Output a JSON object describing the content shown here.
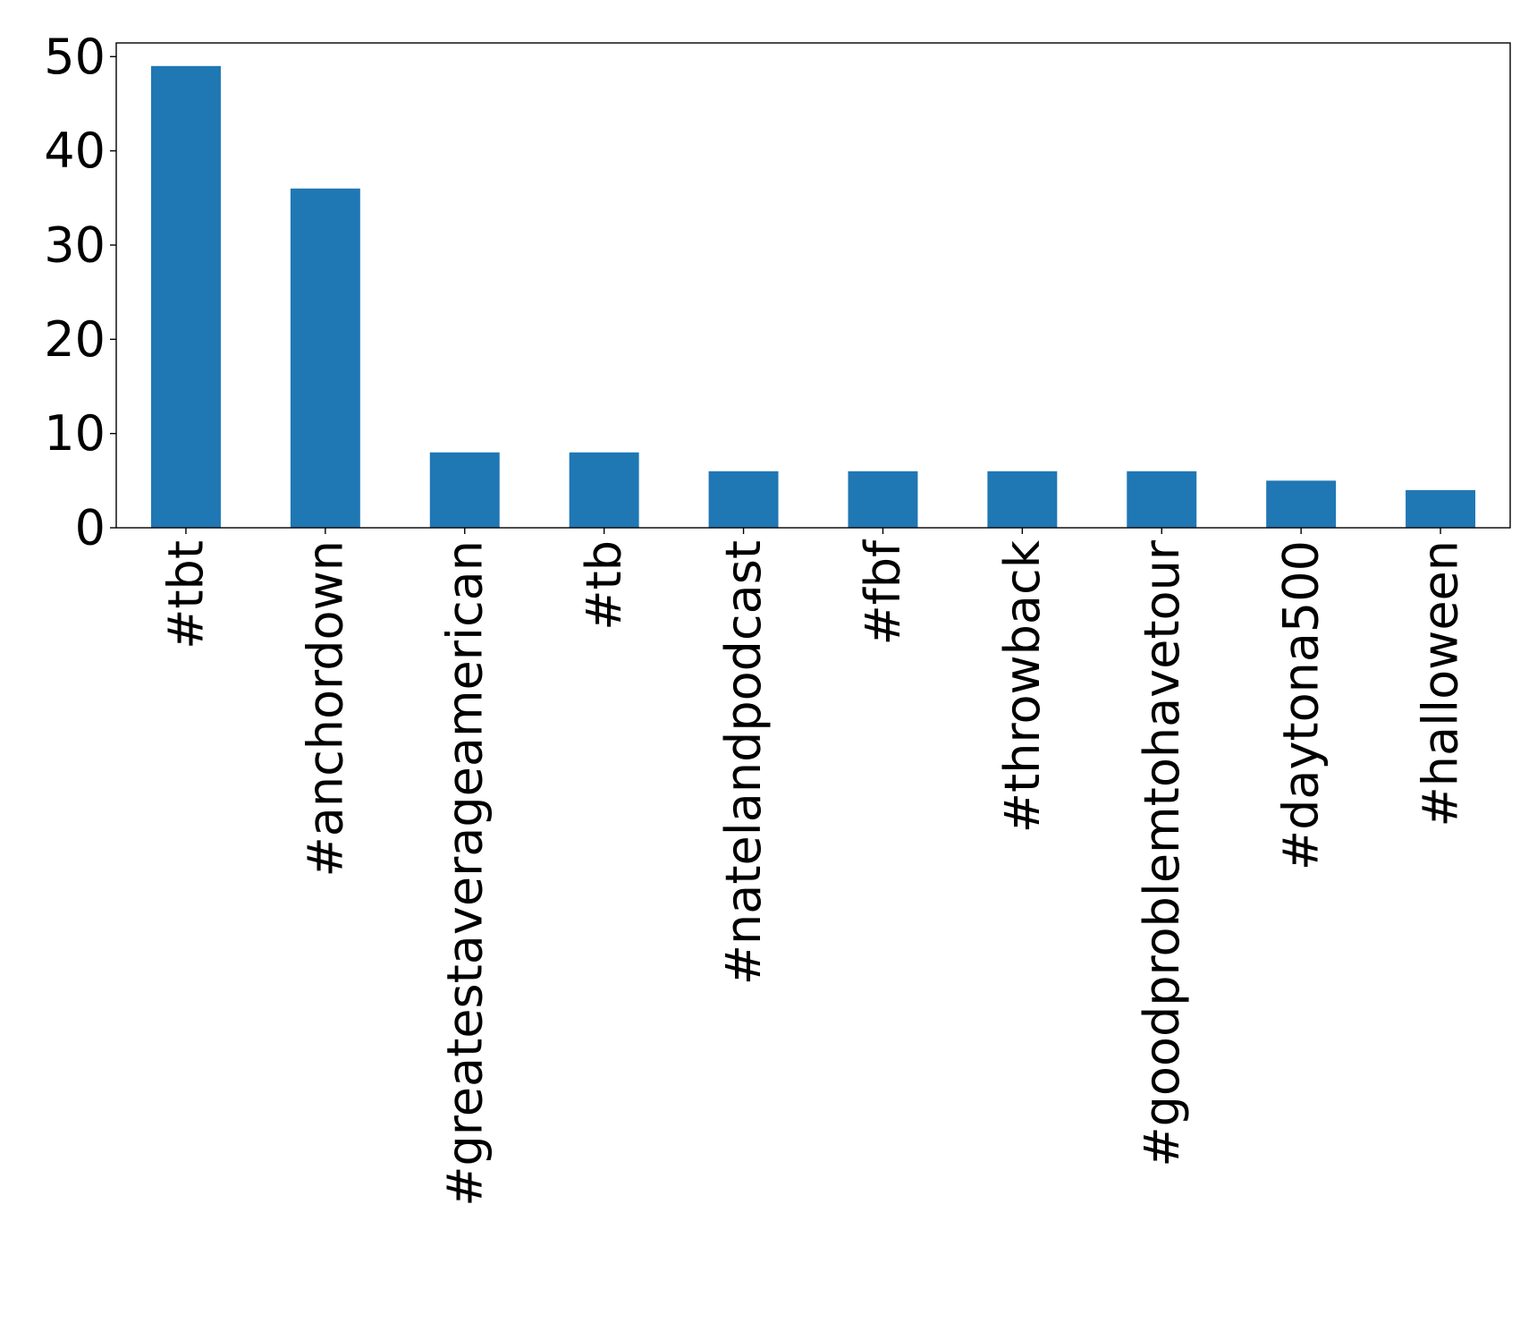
{
  "chart_data": {
    "type": "bar",
    "title": "",
    "xlabel": "",
    "ylabel": "",
    "categories": [
      "#tbt",
      "#anchordown",
      "#greatestaverageamerican",
      "#tb",
      "#natelandpodcast",
      "#fbf",
      "#throwback",
      "#goodproblemtohavetour",
      "#daytona500",
      "#halloween"
    ],
    "values": [
      49,
      36,
      8,
      8,
      6,
      6,
      6,
      6,
      5,
      4
    ],
    "ylim": [
      0,
      51.45
    ],
    "yticks": [
      0,
      10,
      20,
      30,
      40,
      50
    ],
    "grid": false,
    "legend": "none",
    "bar_color": "#1f77b4"
  }
}
